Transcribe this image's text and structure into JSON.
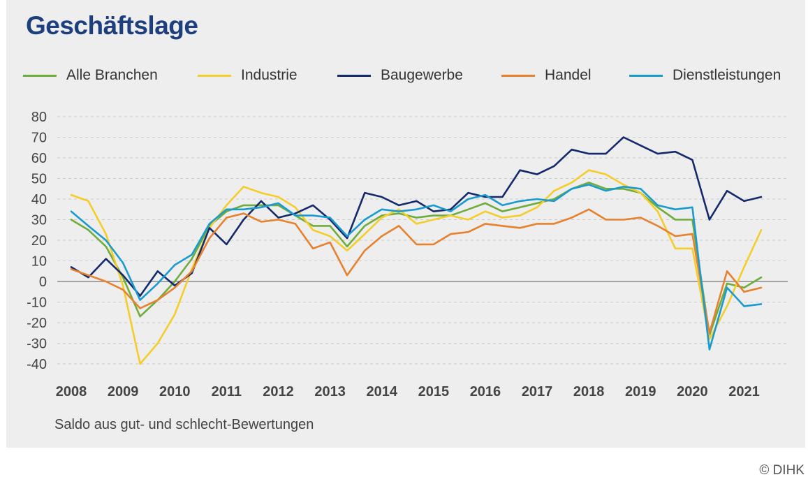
{
  "title": "Geschäftslage",
  "note": "Saldo aus gut- und schlecht-Bewertungen",
  "credit": "© DIHK",
  "chart_data": {
    "type": "line",
    "title": "Geschäftslage",
    "xlabel": "",
    "ylabel": "",
    "ylim": [
      -40,
      80
    ],
    "yticks": [
      -40,
      -30,
      -20,
      -10,
      0,
      10,
      20,
      30,
      40,
      50,
      60,
      70,
      80
    ],
    "xticks": [
      "2008",
      "2009",
      "2010",
      "2011",
      "2012",
      "2013",
      "2014",
      "2015",
      "2016",
      "2017",
      "2018",
      "2019",
      "2020",
      "2021"
    ],
    "grid": "horizontal-dashed",
    "legend": "top",
    "x": [
      2008.0,
      2008.33,
      2008.67,
      2009.0,
      2009.33,
      2009.67,
      2010.0,
      2010.33,
      2010.67,
      2011.0,
      2011.33,
      2011.67,
      2012.0,
      2012.33,
      2012.67,
      2013.0,
      2013.33,
      2013.67,
      2014.0,
      2014.33,
      2014.67,
      2015.0,
      2015.33,
      2015.67,
      2016.0,
      2016.33,
      2016.67,
      2017.0,
      2017.33,
      2017.67,
      2018.0,
      2018.33,
      2018.67,
      2019.0,
      2019.33,
      2019.67,
      2020.0,
      2020.33,
      2020.67,
      2021.0,
      2021.33
    ],
    "series": [
      {
        "name": "Alle Branchen",
        "color": "#6fac3c",
        "values": [
          30,
          25,
          17,
          2,
          -17,
          -9,
          0,
          11,
          27,
          34,
          37,
          37,
          37,
          32,
          27,
          27,
          17,
          27,
          32,
          33,
          31,
          32,
          32,
          35,
          38,
          34,
          36,
          38,
          40,
          45,
          48,
          45,
          45,
          43,
          36,
          30,
          30,
          -26,
          -1,
          -3,
          2
        ]
      },
      {
        "name": "Industrie",
        "color": "#f5cd2a",
        "values": [
          42,
          39,
          23,
          -2,
          -40,
          -30,
          -16,
          6,
          26,
          37,
          46,
          43,
          41,
          36,
          25,
          22,
          15,
          23,
          31,
          35,
          28,
          30,
          32,
          30,
          34,
          31,
          32,
          36,
          44,
          48,
          54,
          52,
          47,
          43,
          34,
          16,
          16,
          -28,
          -12,
          7,
          25
        ]
      },
      {
        "name": "Baugewerbe",
        "color": "#142a6b",
        "values": [
          7,
          2,
          11,
          3,
          -7,
          5,
          -2,
          4,
          26,
          18,
          30,
          39,
          31,
          33,
          37,
          30,
          21,
          43,
          41,
          37,
          39,
          34,
          35,
          43,
          41,
          41,
          54,
          52,
          56,
          64,
          62,
          62,
          70,
          66,
          62,
          63,
          59,
          30,
          44,
          39,
          41
        ]
      },
      {
        "name": "Handel",
        "color": "#e6812e",
        "values": [
          6,
          3,
          0,
          -4,
          -13,
          -9,
          -3,
          5,
          21,
          31,
          33,
          29,
          30,
          28,
          16,
          19,
          3,
          15,
          22,
          27,
          18,
          18,
          23,
          24,
          28,
          27,
          26,
          28,
          28,
          31,
          35,
          30,
          30,
          31,
          27,
          22,
          23,
          -25,
          5,
          -5,
          -3
        ]
      },
      {
        "name": "Dienstleistungen",
        "color": "#1a9bd0",
        "values": [
          34,
          27,
          20,
          9,
          -9,
          -1,
          8,
          13,
          28,
          35,
          35,
          36,
          38,
          32,
          32,
          31,
          22,
          30,
          35,
          34,
          35,
          37,
          34,
          40,
          42,
          37,
          39,
          40,
          39,
          45,
          47,
          44,
          46,
          45,
          37,
          35,
          36,
          -33,
          -3,
          -12,
          -11
        ]
      }
    ]
  }
}
